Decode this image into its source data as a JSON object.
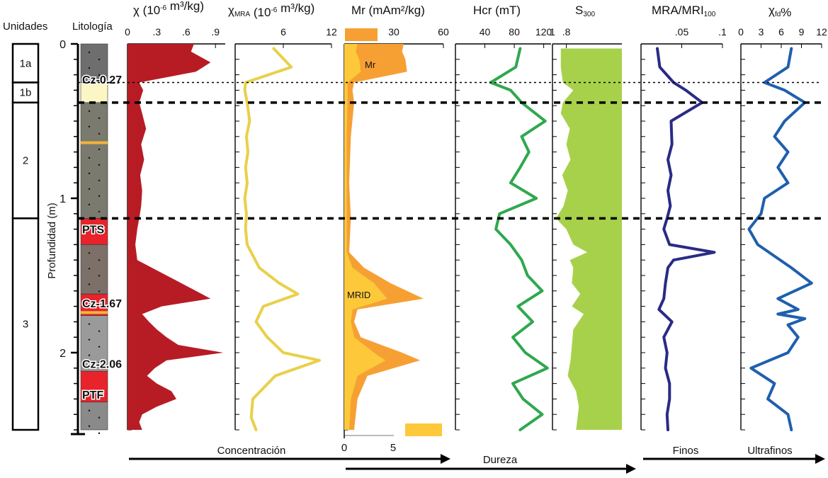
{
  "figure": {
    "header_units": "Unidades",
    "header_lithology": "Litología",
    "depth_axis_label": "Profundidad (m)",
    "depth_ticks": [
      "0",
      "1",
      "2"
    ],
    "depth_range": [
      0,
      2.5
    ]
  },
  "units": [
    {
      "label": "1a",
      "top": 0.0,
      "bottom": 0.25
    },
    {
      "label": "1b",
      "top": 0.25,
      "bottom": 0.38
    },
    {
      "label": "2",
      "top": 0.38,
      "bottom": 1.13
    },
    {
      "label": "3",
      "top": 1.13,
      "bottom": 2.5
    }
  ],
  "lithology": {
    "layers": [
      {
        "top": 0.0,
        "bottom": 0.25,
        "color": "#6e6e6e"
      },
      {
        "top": 0.25,
        "bottom": 0.38,
        "color": "#fbf6c4"
      },
      {
        "top": 0.38,
        "bottom": 1.13,
        "color": "#7a7a6e"
      },
      {
        "top": 1.13,
        "bottom": 1.3,
        "color": "#e8232b"
      },
      {
        "top": 1.3,
        "bottom": 1.62,
        "color": "#7d7068"
      },
      {
        "top": 1.62,
        "bottom": 1.76,
        "color": "#e8232b"
      },
      {
        "top": 1.76,
        "bottom": 2.12,
        "color": "#9a9a9a"
      },
      {
        "top": 2.12,
        "bottom": 2.32,
        "color": "#e8232b"
      },
      {
        "top": 2.32,
        "bottom": 2.5,
        "color": "#8a8a8a"
      }
    ],
    "labels": [
      {
        "text": "Cz-0.27",
        "depth": 0.23
      },
      {
        "text": "PTS",
        "depth": 1.2
      },
      {
        "text": "Cz-1.67",
        "depth": 1.68
      },
      {
        "text": "Cz-2.06",
        "depth": 2.07
      },
      {
        "text": "PTF",
        "depth": 2.27
      }
    ]
  },
  "boundaries": [
    {
      "depth": 0.25,
      "style": "dotted"
    },
    {
      "depth": 0.38,
      "style": "dashed"
    },
    {
      "depth": 1.13,
      "style": "dashed"
    }
  ],
  "chart_data": [
    {
      "type": "area",
      "key": "chi",
      "title_main": "χ",
      "title_rest": " (10",
      "title_exp": "-6",
      "title_tail": " m³/kg)",
      "xticks": [
        "0",
        ".3",
        ".6",
        ".9"
      ],
      "xlim": [
        0,
        1.0
      ],
      "color": "#b71c24",
      "depth": [
        0,
        0.05,
        0.12,
        0.18,
        0.25,
        0.3,
        0.38,
        0.45,
        0.55,
        0.65,
        0.75,
        0.85,
        0.95,
        1.05,
        1.13,
        1.2,
        1.3,
        1.4,
        1.45,
        1.5,
        1.55,
        1.6,
        1.65,
        1.7,
        1.75,
        1.8,
        1.85,
        1.9,
        1.95,
        2.0,
        2.05,
        2.1,
        2.15,
        2.2,
        2.25,
        2.3,
        2.35,
        2.4,
        2.45,
        2.5
      ],
      "values": [
        0.68,
        0.65,
        0.85,
        0.7,
        0.12,
        0.16,
        0.12,
        0.15,
        0.19,
        0.14,
        0.17,
        0.13,
        0.15,
        0.14,
        0.12,
        0.1,
        0.08,
        0.1,
        0.25,
        0.4,
        0.55,
        0.7,
        0.85,
        0.35,
        0.15,
        0.22,
        0.3,
        0.4,
        0.52,
        0.98,
        0.4,
        0.28,
        0.2,
        0.3,
        0.45,
        0.5,
        0.3,
        0.15,
        0.12,
        0.15
      ]
    },
    {
      "type": "line",
      "key": "chimra",
      "title_main": "χ",
      "title_sub": "MRA",
      "title_rest": " (10",
      "title_exp": "-6",
      "title_tail": " m³/kg)",
      "xticks": [
        "6",
        "12"
      ],
      "xtick_values": [
        6,
        12
      ],
      "xlim": [
        0,
        12
      ],
      "color": "#e9d04a",
      "depth": [
        0.03,
        0.15,
        0.25,
        0.3,
        0.38,
        0.5,
        0.6,
        0.7,
        0.8,
        0.9,
        1.0,
        1.1,
        1.2,
        1.3,
        1.45,
        1.55,
        1.62,
        1.7,
        1.8,
        1.9,
        2.0,
        2.05,
        2.15,
        2.3,
        2.42,
        2.5
      ],
      "values": [
        4.8,
        7.0,
        1.3,
        1.2,
        1.5,
        1.8,
        1.4,
        1.6,
        1.3,
        1.5,
        1.2,
        1.4,
        1.3,
        1.5,
        3.0,
        5.5,
        7.8,
        3.5,
        2.6,
        4.0,
        6.0,
        10.5,
        5.0,
        2.2,
        2.0,
        2.6
      ]
    },
    {
      "type": "area",
      "key": "mr",
      "title": "Mr (mAm²/kg)",
      "xticks": [
        "30",
        "60"
      ],
      "xtick_values": [
        30,
        60
      ],
      "xlim": [
        0,
        60
      ],
      "bottom_ticks": [
        "0",
        "5"
      ],
      "series": [
        {
          "name": "Mr",
          "color": "#f6a033",
          "depth": [
            0,
            0.05,
            0.1,
            0.18,
            0.25,
            0.3,
            0.38,
            0.6,
            0.9,
            1.13,
            1.35,
            1.45,
            1.55,
            1.65,
            1.72,
            1.8,
            1.9,
            2.0,
            2.05,
            2.15,
            2.3,
            2.5
          ],
          "values": [
            36,
            35,
            37,
            38,
            6,
            5,
            6,
            4,
            3,
            4,
            3,
            12,
            28,
            48,
            8,
            6,
            10,
            35,
            46,
            14,
            8,
            6
          ]
        },
        {
          "name": "MRID",
          "color": "#fdc93a",
          "depth": [
            0,
            0.05,
            0.1,
            0.18,
            0.25,
            0.3,
            0.38,
            0.6,
            0.9,
            1.13,
            1.35,
            1.45,
            1.55,
            1.65,
            1.72,
            1.8,
            1.9,
            2.0,
            2.05,
            2.15,
            2.3,
            2.5
          ],
          "values": [
            8,
            7,
            9,
            10,
            2,
            2,
            2,
            1.5,
            1.5,
            1.5,
            1.5,
            5,
            18,
            26,
            5,
            4,
            6,
            18,
            25,
            8,
            4,
            3
          ]
        }
      ]
    },
    {
      "type": "line",
      "key": "hcr",
      "title": "Hcr (mT)",
      "xticks": [
        "40",
        "80",
        "120"
      ],
      "xtick_values": [
        40,
        80,
        120
      ],
      "xlim": [
        0,
        130
      ],
      "color": "#2fa84f",
      "depth": [
        0.03,
        0.15,
        0.25,
        0.3,
        0.38,
        0.5,
        0.6,
        0.7,
        0.8,
        0.9,
        1.0,
        1.1,
        1.2,
        1.3,
        1.4,
        1.5,
        1.6,
        1.7,
        1.8,
        1.9,
        2.0,
        2.1,
        2.2,
        2.3,
        2.4,
        2.5
      ],
      "values": [
        88,
        82,
        48,
        75,
        90,
        122,
        90,
        100,
        88,
        75,
        110,
        60,
        55,
        75,
        90,
        98,
        118,
        85,
        105,
        78,
        95,
        125,
        78,
        92,
        118,
        88
      ]
    },
    {
      "type": "area",
      "key": "s300",
      "title_main": "S",
      "title_sub": "300",
      "xticks": [
        "1",
        ".8"
      ],
      "xtick_values": [
        1,
        0.8
      ],
      "xlim": [
        1,
        0.0
      ],
      "color": "#a8d14b",
      "depth": [
        0.03,
        0.15,
        0.25,
        0.3,
        0.38,
        0.45,
        0.55,
        0.65,
        0.75,
        0.85,
        0.95,
        1.05,
        1.13,
        1.2,
        1.3,
        1.35,
        1.4,
        1.45,
        1.55,
        1.62,
        1.7,
        1.75,
        1.85,
        1.95,
        2.05,
        2.15,
        2.25,
        2.35,
        2.5
      ],
      "values": [
        0.88,
        0.88,
        0.85,
        0.7,
        0.85,
        0.88,
        0.75,
        0.8,
        0.74,
        0.86,
        0.78,
        0.84,
        0.95,
        0.8,
        0.7,
        0.5,
        0.75,
        0.7,
        0.72,
        0.6,
        0.72,
        0.55,
        0.7,
        0.72,
        0.74,
        0.78,
        0.66,
        0.62,
        0.66
      ]
    },
    {
      "type": "line",
      "key": "ratio",
      "title_main": "MRA/MRI",
      "title_sub": "100",
      "xticks": [
        ".05",
        ".1"
      ],
      "xtick_values": [
        0.05,
        0.1
      ],
      "xlim": [
        0,
        0.1
      ],
      "color": "#2a2a86",
      "depth": [
        0.03,
        0.15,
        0.25,
        0.3,
        0.38,
        0.5,
        0.65,
        0.75,
        0.85,
        0.95,
        1.05,
        1.13,
        1.2,
        1.3,
        1.35,
        1.4,
        1.45,
        1.55,
        1.65,
        1.72,
        1.8,
        1.9,
        2.0,
        2.1,
        2.2,
        2.3,
        2.4,
        2.5
      ],
      "values": [
        0.02,
        0.023,
        0.04,
        0.055,
        0.075,
        0.037,
        0.038,
        0.033,
        0.037,
        0.033,
        0.036,
        0.032,
        0.028,
        0.035,
        0.09,
        0.04,
        0.033,
        0.03,
        0.028,
        0.022,
        0.038,
        0.028,
        0.032,
        0.03,
        0.035,
        0.035,
        0.032,
        0.033
      ]
    },
    {
      "type": "line",
      "key": "chifd",
      "title_main": "χ",
      "title_sub": "fd",
      "title_tail": "%",
      "xticks": [
        "0",
        "3",
        "6",
        "9",
        "12"
      ],
      "xtick_values": [
        0,
        3,
        6,
        9,
        12
      ],
      "xlim": [
        0,
        12
      ],
      "color": "#1f5fae",
      "depth": [
        0.03,
        0.15,
        0.25,
        0.3,
        0.38,
        0.5,
        0.6,
        0.7,
        0.8,
        0.9,
        1.0,
        1.1,
        1.2,
        1.3,
        1.45,
        1.55,
        1.65,
        1.72,
        1.75,
        1.78,
        1.82,
        1.9,
        2.0,
        2.1,
        2.2,
        2.3,
        2.4,
        2.5
      ],
      "values": [
        7.5,
        7.0,
        3.5,
        6.5,
        9.5,
        6.5,
        5.0,
        7.0,
        5.5,
        7.0,
        3.5,
        3.0,
        1.2,
        2.5,
        7.5,
        10.5,
        5.5,
        8.5,
        5.5,
        9.5,
        7.0,
        8.5,
        7.0,
        1.5,
        5.0,
        4.0,
        7.0,
        7.5
      ]
    }
  ],
  "mr_legend": {
    "mr_label": "Mr",
    "mrid_label": "MRID"
  },
  "bottom_labels": {
    "concentracion": "Concentración",
    "dureza": "Dureza",
    "finos": "Finos",
    "ultrafinos": "Ultrafinos"
  }
}
